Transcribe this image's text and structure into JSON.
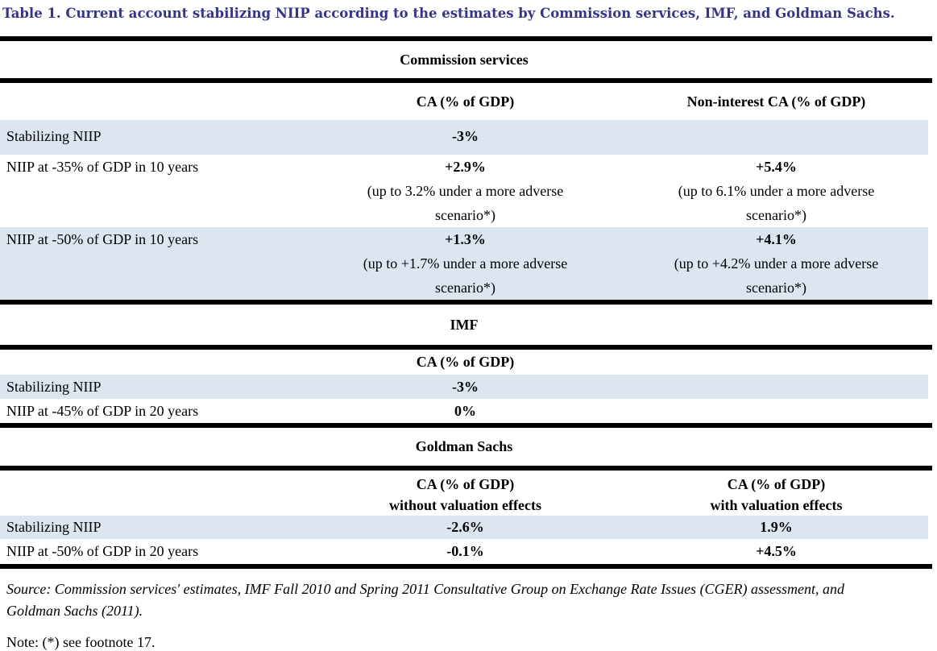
{
  "title": "Table 1. Current account stabilizing NIIP according to the estimates by Commission services, IMF, and Goldman Sachs.",
  "colors": {
    "title_text": "#33348f",
    "row_shade": "#dce6f1",
    "rule": "#000000"
  },
  "sections": [
    {
      "name": "Commission services",
      "col_headers": [
        {
          "line1": "CA (% of GDP)",
          "line2": ""
        },
        {
          "line1": "Non-interest CA (% of GDP)",
          "line2": ""
        }
      ],
      "rows": [
        {
          "label": "Stabilizing NIIP",
          "cells": [
            {
              "value": "-3%",
              "note": ""
            },
            {
              "value": "",
              "note": ""
            }
          ]
        },
        {
          "label": "NIIP at -35% of GDP in 10 years",
          "cells": [
            {
              "value": "+2.9%",
              "note": "(up to 3.2% under a more adverse scenario*)"
            },
            {
              "value": "+5.4%",
              "note": "(up to 6.1% under a more adverse scenario*)"
            }
          ]
        },
        {
          "label": "NIIP at -50% of GDP in 10 years",
          "cells": [
            {
              "value": "+1.3%",
              "note": "(up to +1.7% under a more adverse scenario*)"
            },
            {
              "value": "+4.1%",
              "note": "(up to +4.2% under a more adverse scenario*)"
            }
          ]
        }
      ]
    },
    {
      "name": "IMF",
      "col_headers": [
        {
          "line1": "CA (% of GDP)",
          "line2": ""
        },
        {
          "line1": "",
          "line2": ""
        }
      ],
      "rows": [
        {
          "label": "Stabilizing NIIP",
          "cells": [
            {
              "value": "-3%",
              "note": ""
            },
            {
              "value": "",
              "note": ""
            }
          ]
        },
        {
          "label": "NIIP at -45% of GDP in 20 years",
          "cells": [
            {
              "value": "0%",
              "note": ""
            },
            {
              "value": "",
              "note": ""
            }
          ]
        }
      ]
    },
    {
      "name": "Goldman Sachs",
      "col_headers": [
        {
          "line1": "CA (% of GDP)",
          "line2": "without valuation effects"
        },
        {
          "line1": "CA (% of GDP)",
          "line2": "with valuation effects"
        }
      ],
      "rows": [
        {
          "label": "Stabilizing NIIP",
          "cells": [
            {
              "value": "-2.6%",
              "note": ""
            },
            {
              "value": "1.9%",
              "note": ""
            }
          ]
        },
        {
          "label": "NIIP at -50% of GDP in 20 years",
          "cells": [
            {
              "value": "-0.1%",
              "note": ""
            },
            {
              "value": "+4.5%",
              "note": ""
            }
          ]
        }
      ]
    }
  ],
  "footer": {
    "source": "Source: Commission services' estimates, IMF Fall 2010 and Spring 2011 Consultative Group on Exchange Rate Issues (CGER) assessment, and Goldman Sachs (2011).",
    "note": "Note: (*) see footnote 17."
  }
}
